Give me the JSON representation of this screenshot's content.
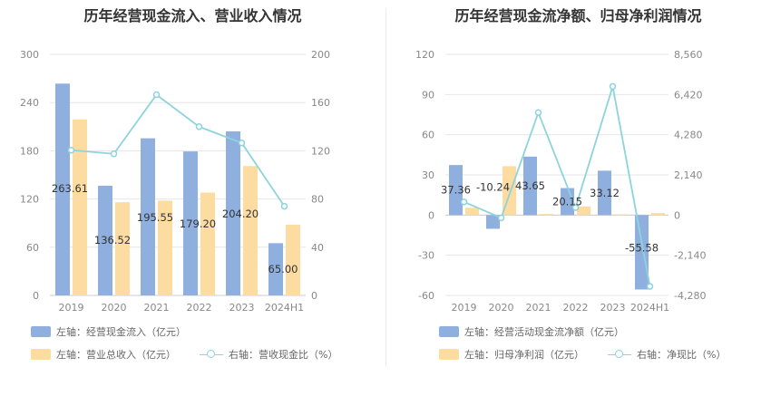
{
  "chart_data": [
    {
      "type": "bar",
      "title": "历年经营现金流入、营业收入情况",
      "categories": [
        "2019",
        "2020",
        "2021",
        "2022",
        "2023",
        "2024H1"
      ],
      "left_axis": {
        "min": 0,
        "max": 300,
        "ticks": [
          "0",
          "60",
          "120",
          "180",
          "240",
          "300"
        ]
      },
      "right_axis": {
        "min": 0,
        "max": 200,
        "ticks": [
          "0",
          "40",
          "80",
          "120",
          "160",
          "200"
        ]
      },
      "series": [
        {
          "name": "左轴：经营现金流入（亿元）",
          "axis": "left",
          "kind": "bar",
          "color": "#8fb0de",
          "values": [
            263.61,
            136.52,
            195.55,
            179.2,
            204.2,
            65.0
          ],
          "labels": [
            "263.61",
            "136.52",
            "195.55",
            "179.20",
            "204.20",
            "65.00"
          ]
        },
        {
          "name": "左轴：营业总收入（亿元）",
          "axis": "left",
          "kind": "bar",
          "color": "#fddca2",
          "values": [
            219,
            116,
            118,
            128,
            161,
            88
          ]
        },
        {
          "name": "右轴：营收现金比（%）",
          "axis": "right",
          "kind": "line",
          "color": "#8dd3de",
          "values": [
            120.5,
            117.5,
            166.5,
            140,
            126.5,
            74
          ]
        }
      ]
    },
    {
      "type": "bar",
      "title": "历年经营现金流净额、归母净利润情况",
      "categories": [
        "2019",
        "2020",
        "2021",
        "2022",
        "2023",
        "2024H1"
      ],
      "left_axis": {
        "min": -60,
        "max": 120,
        "ticks": [
          "-60",
          "-30",
          "0",
          "30",
          "60",
          "90",
          "120"
        ]
      },
      "right_axis": {
        "min": -4280,
        "max": 8560,
        "ticks": [
          "-4,280",
          "-2,140",
          "0",
          "2,140",
          "4,280",
          "6,420",
          "8,560"
        ]
      },
      "series": [
        {
          "name": "左轴：经营活动现金流净额（亿元）",
          "axis": "left",
          "kind": "bar",
          "color": "#8fb0de",
          "values": [
            37.36,
            -10.24,
            43.65,
            20.15,
            33.12,
            -55.58
          ],
          "labels": [
            "37.36",
            "-10.24",
            "43.65",
            "20.15",
            "33.12",
            "-55.58"
          ]
        },
        {
          "name": "左轴：归母净利润（亿元）",
          "axis": "left",
          "kind": "bar",
          "color": "#fddca2",
          "values": [
            5.5,
            36.5,
            0.8,
            6.5,
            0.5,
            1.5
          ]
        },
        {
          "name": "右轴：净现比（%）",
          "axis": "right",
          "kind": "line",
          "color": "#8dd3de",
          "values": [
            700,
            -150,
            5460,
            400,
            6850,
            -3800
          ]
        }
      ]
    }
  ]
}
